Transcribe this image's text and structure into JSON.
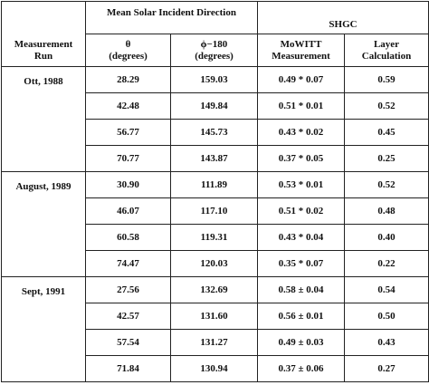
{
  "header": {
    "group1": "Mean Solar Incident Direction",
    "group2": "SHGC",
    "col0_line1": "Measurement",
    "col0_line2": "Run",
    "col1_line1": "θ",
    "col1_line2": "(degrees)",
    "col2_line1": "ϕ−180",
    "col2_line2": "(degrees)",
    "col3_line1": "MoWITT",
    "col3_line2": "Measurement",
    "col4_line1": "Layer",
    "col4_line2": "Calculation"
  },
  "groups": [
    {
      "run": "Ott, 1988",
      "rows": [
        {
          "theta": "28.29",
          "phi": "159.03",
          "mowitt": "0.49 * 0.07",
          "layer": "0.59"
        },
        {
          "theta": "42.48",
          "phi": "149.84",
          "mowitt": "0.51 * 0.01",
          "layer": "0.52"
        },
        {
          "theta": "56.77",
          "phi": "145.73",
          "mowitt": "0.43 * 0.02",
          "layer": "0.45"
        },
        {
          "theta": "70.77",
          "phi": "143.87",
          "mowitt": "0.37 * 0.05",
          "layer": "0.25"
        }
      ]
    },
    {
      "run": "August, 1989",
      "rows": [
        {
          "theta": "30.90",
          "phi": "111.89",
          "mowitt": "0.53 * 0.01",
          "layer": "0.52"
        },
        {
          "theta": "46.07",
          "phi": "117.10",
          "mowitt": "0.51 * 0.02",
          "layer": "0.48"
        },
        {
          "theta": "60.58",
          "phi": "119.31",
          "mowitt": "0.43 * 0.04",
          "layer": "0.40"
        },
        {
          "theta": "74.47",
          "phi": "120.03",
          "mowitt": "0.35 * 0.07",
          "layer": "0.22"
        }
      ]
    },
    {
      "run": "Sept, 1991",
      "rows": [
        {
          "theta": "27.56",
          "phi": "132.69",
          "mowitt": "0.58 ± 0.04",
          "layer": "0.54"
        },
        {
          "theta": "42.57",
          "phi": "131.60",
          "mowitt": "0.56 ± 0.01",
          "layer": "0.50"
        },
        {
          "theta": "57.54",
          "phi": "131.27",
          "mowitt": "0.49 ± 0.03",
          "layer": "0.43"
        },
        {
          "theta": "71.84",
          "phi": "130.94",
          "mowitt": "0.37 ± 0.06",
          "layer": "0.27"
        }
      ]
    }
  ]
}
